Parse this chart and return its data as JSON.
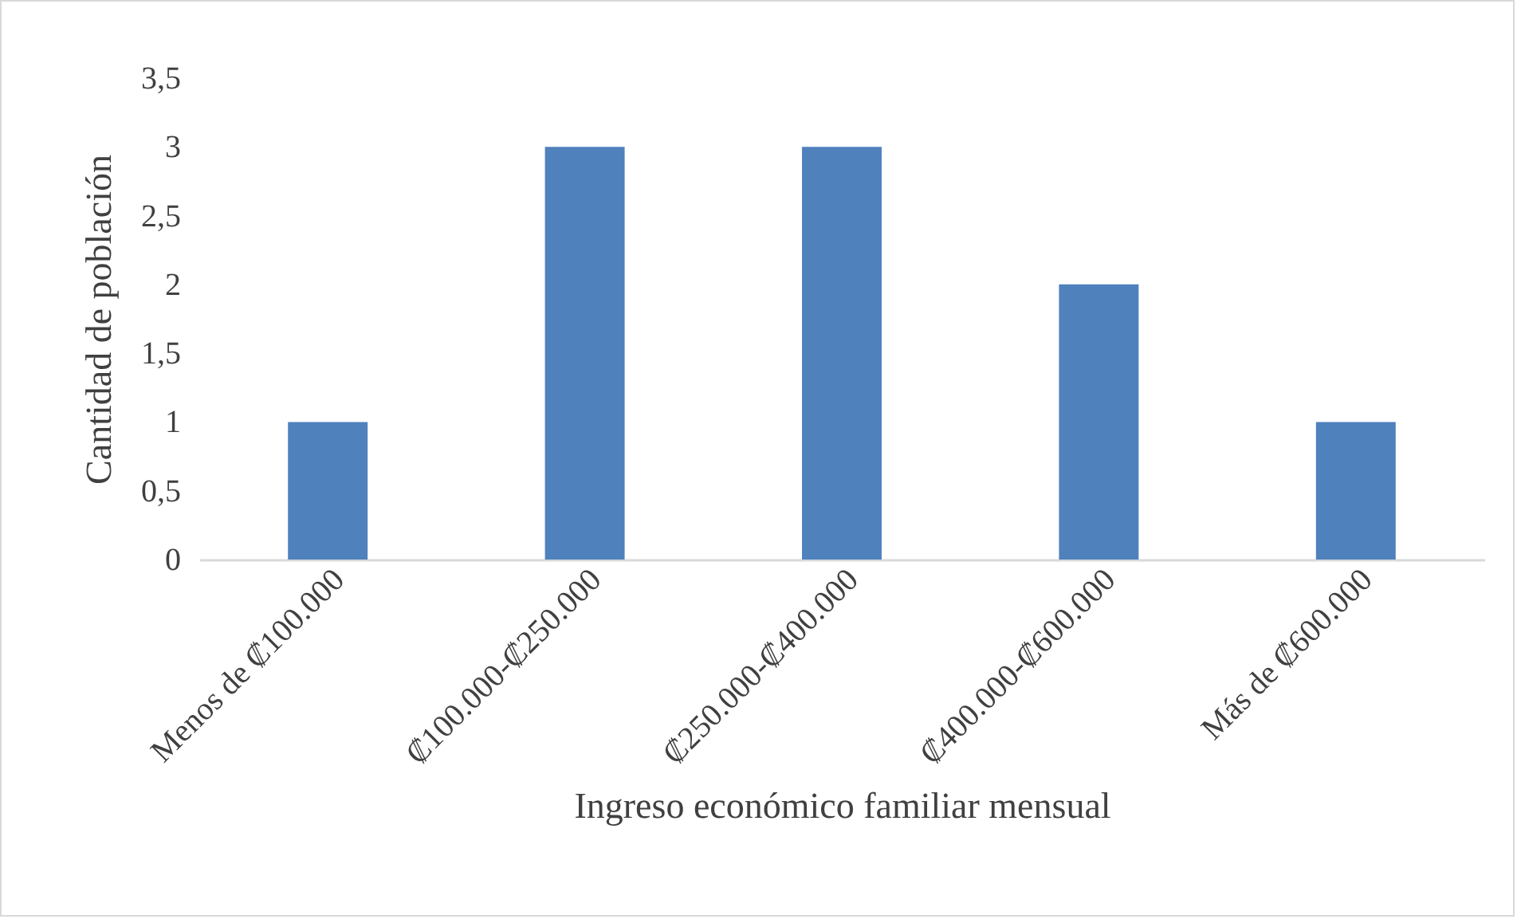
{
  "chart_data": {
    "type": "bar",
    "xlabel": "Ingreso económico familiar mensual",
    "ylabel": "Cantidad de población",
    "categories": [
      "Menos de ₡100.000",
      "₡100.000-₡250.000",
      "₡250.000-₡400.000",
      "₡400.000-₡600.000",
      "Más de ₡600.000"
    ],
    "values": [
      1,
      3,
      3,
      2,
      1
    ],
    "color": "#4f81bd",
    "ylim": [
      0,
      3.5
    ],
    "yticks": [
      0,
      {
        "value": 0.5,
        "label": "0,5"
      },
      1,
      {
        "value": 1.5,
        "label": "1,5"
      },
      2,
      {
        "value": 2.5,
        "label": "2,5"
      },
      3,
      {
        "value": 3.5,
        "label": "3,5"
      }
    ]
  }
}
